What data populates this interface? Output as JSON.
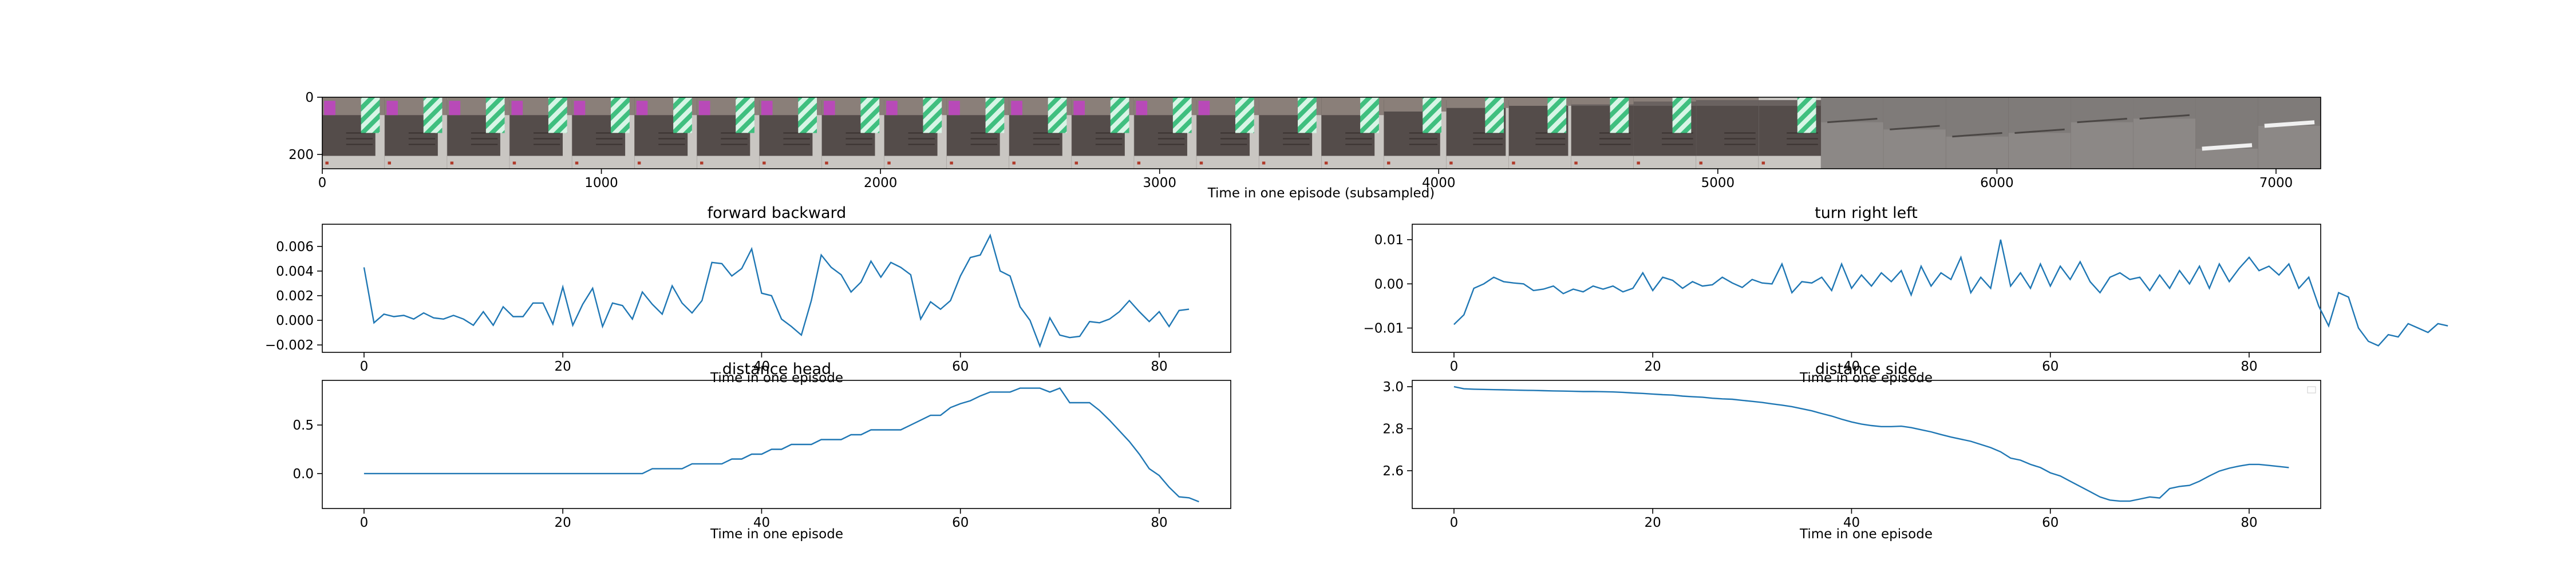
{
  "chart_data": [
    {
      "type": "image",
      "xlabel": "Time in one episode (subsampled)",
      "ylabel": "",
      "xlim": [
        0,
        7160
      ],
      "ylim": [
        250,
        0
      ],
      "xticks": [
        0,
        1000,
        2000,
        3000,
        4000,
        5000,
        6000,
        7000
      ],
      "yticks": [
        0,
        200
      ],
      "frames": [
        {
          "s": "wall",
          "ob": 0.85,
          "band": 0.25,
          "stripe": true,
          "box": true
        },
        {
          "s": "wall",
          "ob": 0.85,
          "band": 0.25,
          "stripe": true,
          "box": true
        },
        {
          "s": "wall",
          "ob": 0.85,
          "band": 0.25,
          "stripe": true,
          "box": true
        },
        {
          "s": "wall",
          "ob": 0.85,
          "band": 0.25,
          "stripe": true,
          "box": true
        },
        {
          "s": "wall",
          "ob": 0.85,
          "band": 0.25,
          "stripe": true,
          "box": true
        },
        {
          "s": "wall",
          "ob": 0.85,
          "band": 0.25,
          "stripe": true,
          "box": true
        },
        {
          "s": "wall",
          "ob": 0.85,
          "band": 0.25,
          "stripe": true,
          "box": true
        },
        {
          "s": "wall",
          "ob": 0.85,
          "band": 0.25,
          "stripe": true,
          "box": true
        },
        {
          "s": "wall",
          "ob": 0.85,
          "band": 0.25,
          "stripe": true,
          "box": true
        },
        {
          "s": "wall",
          "ob": 0.85,
          "band": 0.25,
          "stripe": true,
          "box": true
        },
        {
          "s": "wall",
          "ob": 0.85,
          "band": 0.25,
          "stripe": true,
          "box": true
        },
        {
          "s": "wall",
          "ob": 0.85,
          "band": 0.25,
          "stripe": true,
          "box": true
        },
        {
          "s": "wall",
          "ob": 0.85,
          "band": 0.25,
          "stripe": true,
          "box": true
        },
        {
          "s": "wall",
          "ob": 0.85,
          "band": 0.25,
          "stripe": true,
          "box": true
        },
        {
          "s": "wall",
          "ob": 0.85,
          "band": 0.25,
          "stripe": true,
          "box": true
        },
        {
          "s": "wall",
          "ob": 0.85,
          "band": 0.25,
          "stripe": true,
          "box": false
        },
        {
          "s": "wall",
          "ob": 0.85,
          "band": 0.25,
          "stripe": true,
          "box": false
        },
        {
          "s": "wall",
          "ob": 0.9,
          "band": 0.2,
          "stripe": true,
          "box": false
        },
        {
          "s": "wall",
          "ob": 0.95,
          "band": 0.15,
          "stripe": true,
          "box": false
        },
        {
          "s": "wall",
          "ob": 0.95,
          "band": 0.12,
          "stripe": true,
          "box": false
        },
        {
          "s": "wall",
          "ob": 1.0,
          "band": 0.1,
          "stripe": true,
          "box": false
        },
        {
          "s": "wall",
          "ob": 1.0,
          "band": 0.06,
          "stripe": true,
          "box": false
        },
        {
          "s": "wall",
          "ob": 1.0,
          "band": 0.04,
          "stripe": false,
          "box": false
        },
        {
          "s": "wall",
          "ob": 1.0,
          "band": 0.0,
          "stripe": true,
          "box": false
        },
        {
          "s": "close",
          "line": 0.35
        },
        {
          "s": "close",
          "line": 0.45
        },
        {
          "s": "close",
          "line": 0.55
        },
        {
          "s": "close",
          "line": 0.5
        },
        {
          "s": "close",
          "line": 0.35
        },
        {
          "s": "close",
          "line": 0.3
        },
        {
          "s": "close",
          "line": 0.72,
          "white": true
        },
        {
          "s": "close",
          "line": 0.4,
          "white": true
        }
      ]
    },
    {
      "type": "line",
      "title": "forward backward",
      "xlabel": "Time in one episode",
      "xlim": [
        -4.2,
        87.2
      ],
      "ylim": [
        -0.0026,
        0.0078
      ],
      "xticks": [
        0,
        20,
        40,
        60,
        80
      ],
      "yticks": [
        -0.002,
        0.0,
        0.002,
        0.004,
        0.006
      ],
      "ytick_labels": [
        "−0.002",
        "0.000",
        "0.002",
        "0.004",
        "0.006"
      ],
      "color": "#1f77b4",
      "y": [
        0.0043,
        -0.0002,
        0.0005,
        0.0003,
        0.0004,
        0.0001,
        0.0006,
        0.0002,
        0.0001,
        0.0004,
        0.0001,
        -0.0004,
        0.0007,
        -0.0004,
        0.0011,
        0.0003,
        0.0003,
        0.0014,
        0.0014,
        -0.0003,
        0.0027,
        -0.0004,
        0.0013,
        0.0026,
        -0.0005,
        0.0014,
        0.0012,
        0.0001,
        0.0023,
        0.0013,
        0.0005,
        0.0028,
        0.0014,
        0.0006,
        0.0016,
        0.0047,
        0.0046,
        0.0036,
        0.0042,
        0.0058,
        0.0022,
        0.002,
        0.0001,
        -0.0005,
        -0.0012,
        0.0016,
        0.0053,
        0.0043,
        0.0037,
        0.0023,
        0.0031,
        0.0048,
        0.0035,
        0.0047,
        0.0043,
        0.0037,
        0.0001,
        0.0015,
        0.0009,
        0.0016,
        0.0036,
        0.0051,
        0.0053,
        0.0069,
        0.004,
        0.0036,
        0.0011,
        0.0,
        -0.0021,
        0.0002,
        -0.0012,
        -0.0014,
        -0.0013,
        -0.0001,
        -0.0002,
        0.0001,
        0.0007,
        0.0016,
        0.0007,
        -0.0001,
        0.0007,
        -0.0005,
        0.0008,
        0.0009
      ]
    },
    {
      "type": "line",
      "title": "turn right left",
      "xlabel": "Time in one episode",
      "xlim": [
        -4.2,
        87.2
      ],
      "ylim": [
        -0.0155,
        0.0135
      ],
      "xticks": [
        0,
        20,
        40,
        60,
        80
      ],
      "yticks": [
        -0.01,
        0.0,
        0.01
      ],
      "ytick_labels": [
        "−0.01",
        "0.00",
        "0.01"
      ],
      "color": "#1f77b4",
      "y": [
        -0.0092,
        -0.007,
        -0.001,
        0.0,
        0.0015,
        0.0005,
        0.0002,
        0.0,
        -0.0015,
        -0.0012,
        -0.0005,
        -0.0022,
        -0.0012,
        -0.0018,
        -0.0005,
        -0.0012,
        -0.0005,
        -0.0018,
        -0.001,
        0.0025,
        -0.0015,
        0.0015,
        0.0008,
        -0.001,
        0.0005,
        -0.0005,
        -0.0002,
        0.0015,
        0.0002,
        -0.0008,
        0.001,
        0.0002,
        0.0,
        0.0045,
        -0.002,
        0.0005,
        0.0002,
        0.0015,
        -0.0015,
        0.0045,
        -0.001,
        0.002,
        -0.0005,
        0.0025,
        0.0005,
        0.003,
        -0.0025,
        0.004,
        -0.0005,
        0.0025,
        0.001,
        0.006,
        -0.002,
        0.0015,
        -0.001,
        0.01,
        -0.0005,
        0.0025,
        -0.001,
        0.0045,
        -0.0005,
        0.004,
        0.001,
        0.005,
        0.0005,
        -0.002,
        0.0015,
        0.0025,
        0.001,
        0.0015,
        -0.0015,
        0.002,
        -0.001,
        0.003,
        0.0,
        0.004,
        -0.001,
        0.0045,
        0.0005,
        0.0035,
        0.006,
        0.003,
        0.004,
        0.002,
        0.0045,
        -0.001,
        0.0015,
        -0.005,
        -0.0095,
        -0.002,
        -0.003,
        -0.01,
        -0.013,
        -0.014,
        -0.0115,
        -0.012,
        -0.009,
        -0.01,
        -0.011,
        -0.009,
        -0.0095
      ]
    },
    {
      "type": "line",
      "title": "distance head",
      "xlabel": "Time in one episode",
      "xlim": [
        -4.2,
        87.2
      ],
      "ylim": [
        -0.36,
        0.96
      ],
      "xticks": [
        0,
        20,
        40,
        60,
        80
      ],
      "yticks": [
        0.0,
        0.5
      ],
      "ytick_labels": [
        "0.0",
        "0.5"
      ],
      "color": "#1f77b4",
      "y": [
        0.0,
        0.0,
        0.0,
        0.0,
        0.0,
        0.0,
        0.0,
        0.0,
        0.0,
        0.0,
        0.0,
        0.0,
        0.0,
        0.0,
        0.0,
        0.0,
        0.0,
        0.0,
        0.0,
        0.0,
        0.0,
        0.0,
        0.0,
        0.0,
        0.0,
        0.0,
        0.0,
        0.0,
        0.0,
        0.05,
        0.05,
        0.05,
        0.05,
        0.1,
        0.1,
        0.1,
        0.1,
        0.15,
        0.15,
        0.2,
        0.2,
        0.25,
        0.25,
        0.3,
        0.3,
        0.3,
        0.35,
        0.35,
        0.35,
        0.4,
        0.4,
        0.45,
        0.45,
        0.45,
        0.45,
        0.5,
        0.55,
        0.6,
        0.6,
        0.68,
        0.72,
        0.75,
        0.8,
        0.84,
        0.84,
        0.84,
        0.88,
        0.88,
        0.88,
        0.84,
        0.88,
        0.73,
        0.73,
        0.73,
        0.65,
        0.55,
        0.44,
        0.33,
        0.2,
        0.05,
        -0.02,
        -0.14,
        -0.24,
        -0.25,
        -0.29
      ]
    },
    {
      "type": "line",
      "title": "distance side",
      "xlabel": "Time in one episode",
      "xlim": [
        -4.2,
        87.2
      ],
      "ylim": [
        2.42,
        3.03
      ],
      "xticks": [
        0,
        20,
        40,
        60,
        80
      ],
      "yticks": [
        2.6,
        2.8,
        3.0
      ],
      "ytick_labels": [
        "2.6",
        "2.8",
        "3.0"
      ],
      "color": "#1f77b4",
      "y": [
        3.0,
        2.99,
        2.988,
        2.987,
        2.986,
        2.985,
        2.984,
        2.983,
        2.982,
        2.981,
        2.98,
        2.979,
        2.978,
        2.977,
        2.977,
        2.976,
        2.975,
        2.973,
        2.97,
        2.968,
        2.965,
        2.962,
        2.96,
        2.955,
        2.952,
        2.95,
        2.945,
        2.942,
        2.94,
        2.935,
        2.93,
        2.925,
        2.918,
        2.912,
        2.905,
        2.895,
        2.885,
        2.872,
        2.86,
        2.845,
        2.832,
        2.822,
        2.815,
        2.81,
        2.81,
        2.812,
        2.805,
        2.795,
        2.785,
        2.772,
        2.76,
        2.75,
        2.74,
        2.725,
        2.71,
        2.69,
        2.66,
        2.65,
        2.63,
        2.615,
        2.59,
        2.575,
        2.55,
        2.525,
        2.5,
        2.475,
        2.46,
        2.455,
        2.455,
        2.465,
        2.475,
        2.47,
        2.515,
        2.525,
        2.53,
        2.55,
        2.575,
        2.598,
        2.612,
        2.622,
        2.63,
        2.63,
        2.625,
        2.62,
        2.615
      ]
    }
  ]
}
